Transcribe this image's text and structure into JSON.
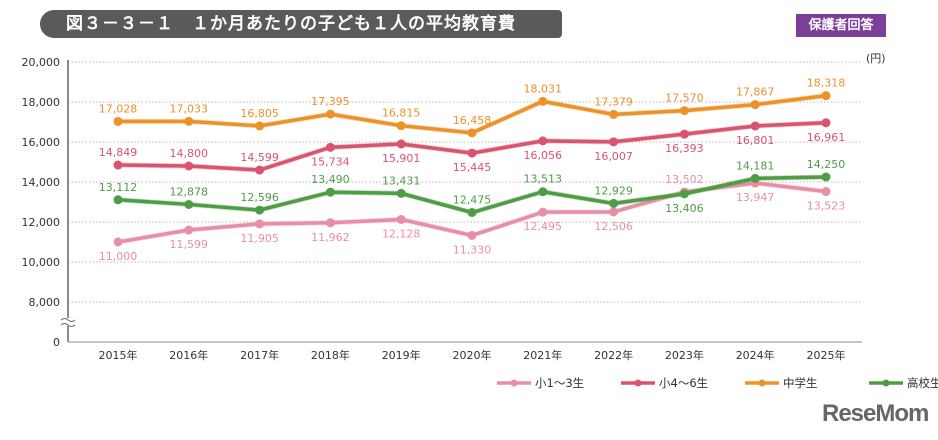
{
  "header": {
    "title": "図３－３－１　１か月あたりの子ども１人の平均教育費",
    "badge": "保護者回答"
  },
  "logo": "ReseMom",
  "chart_data": {
    "type": "line",
    "unit_label": "(円)",
    "x": [
      "2015年",
      "2016年",
      "2017年",
      "2018年",
      "2019年",
      "2020年",
      "2021年",
      "2022年",
      "2023年",
      "2024年",
      "2025年"
    ],
    "y_ticks": [
      "0",
      "8,000",
      "10,000",
      "12,000",
      "14,000",
      "16,000",
      "18,000",
      "20,000"
    ],
    "ylim": [
      0,
      20000
    ],
    "axis_break": [
      0,
      8000
    ],
    "grid": true,
    "legend_placement": "bottom-right",
    "series": [
      {
        "name": "小1〜3生",
        "color": "#e88fa6",
        "values": [
          11000,
          11599,
          11905,
          11962,
          12128,
          11330,
          12495,
          12506,
          13502,
          13947,
          13523
        ],
        "labels": [
          "11,000",
          "11,599",
          "11,905",
          "11,962",
          "12,128",
          "11,330",
          "12,495",
          "12,506",
          "13,502",
          "13,947",
          "13,523"
        ]
      },
      {
        "name": "小4〜6生",
        "color": "#d9546f",
        "values": [
          14849,
          14800,
          14599,
          15734,
          15901,
          15445,
          16056,
          16007,
          16393,
          16801,
          16961
        ],
        "labels": [
          "14,849",
          "14,800",
          "14,599",
          "15,734",
          "15,901",
          "15,445",
          "16,056",
          "16,007",
          "16,393",
          "16,801",
          "16,961"
        ]
      },
      {
        "name": "中学生",
        "color": "#eb9229",
        "values": [
          17028,
          17033,
          16805,
          17395,
          16815,
          16458,
          18031,
          17379,
          17570,
          17867,
          18318
        ],
        "labels": [
          "17,028",
          "17,033",
          "16,805",
          "17,395",
          "16,815",
          "16,458",
          "18,031",
          "17,379",
          "17,570",
          "17,867",
          "18,318"
        ]
      },
      {
        "name": "高校生",
        "color": "#4e9d45",
        "values": [
          13112,
          12878,
          12596,
          13490,
          13431,
          12475,
          13513,
          12929,
          13406,
          14181,
          14250
        ],
        "labels": [
          "13,112",
          "12,878",
          "12,596",
          "13,490",
          "13,431",
          "12,475",
          "13,513",
          "12,929",
          "13,406",
          "14,181",
          "14,250"
        ]
      }
    ]
  }
}
